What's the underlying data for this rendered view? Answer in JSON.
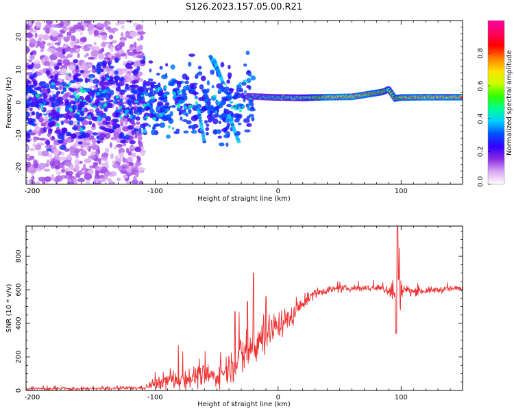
{
  "title": "S126.2023.157.05.00.R21",
  "chart_data": [
    {
      "type": "heatmap",
      "title": "S126.2023.157.05.00.R21",
      "xlabel": "Height of straight line (km)",
      "ylabel": "Frequency (Hz)",
      "xlim": [
        -205,
        150
      ],
      "ylim": [
        -25,
        25
      ],
      "xticks": [
        -200,
        -100,
        0,
        100
      ],
      "yticks": [
        -20,
        -10,
        0,
        10,
        20
      ],
      "colorbar": {
        "label": "Normalized spectral amplitude",
        "range": [
          0,
          1
        ],
        "ticks": [
          "0.0",
          "0.2",
          "0.4",
          "0.6",
          "0.8"
        ],
        "colors": [
          "#ffffff",
          "#d9a8f2",
          "#8a2be2",
          "#3300ff",
          "#0050ff",
          "#00d0ff",
          "#00ff90",
          "#30ff00",
          "#c8ff00",
          "#ffe000",
          "#ff8000",
          "#ff0000",
          "#ff0060",
          "#ff00a0"
        ]
      },
      "ridge": {
        "description_points_height_km": [
          -20,
          0,
          20,
          40,
          60,
          75,
          85,
          90,
          95,
          100,
          120,
          150
        ],
        "frequency_hz": [
          1.8,
          1.5,
          1.4,
          1.6,
          1.7,
          2.6,
          3.2,
          4.0,
          1.2,
          1.5,
          1.6,
          1.6
        ],
        "amplitude": [
          0.45,
          0.55,
          0.6,
          0.95,
          0.95,
          0.9,
          0.85,
          0.7,
          0.8,
          0.9,
          0.95,
          0.95
        ]
      }
    },
    {
      "type": "line",
      "xlabel": "Height of straight line (km)",
      "ylabel": "SNR (10 * v/v)",
      "xlim": [
        -205,
        150
      ],
      "ylim": [
        0,
        980
      ],
      "xticks": [
        -200,
        -100,
        0,
        100
      ],
      "yticks": [
        0,
        200,
        400,
        600,
        800
      ],
      "color": "#ee3333",
      "series": [
        {
          "name": "SNR",
          "x": [
            -205,
            -150,
            -110,
            -100,
            -90,
            -80,
            -70,
            -60,
            -50,
            -40,
            -30,
            -20,
            -10,
            0,
            10,
            20,
            30,
            40,
            60,
            80,
            90,
            95,
            98,
            100,
            110,
            130,
            150
          ],
          "y": [
            10,
            10,
            15,
            40,
            60,
            70,
            80,
            90,
            80,
            140,
            200,
            260,
            340,
            390,
            430,
            520,
            580,
            600,
            610,
            610,
            600,
            580,
            620,
            600,
            590,
            600,
            610
          ],
          "noise": [
            10,
            8,
            12,
            35,
            60,
            70,
            70,
            70,
            60,
            100,
            140,
            140,
            120,
            90,
            70,
            40,
            30,
            25,
            20,
            20,
            40,
            150,
            300,
            60,
            25,
            20,
            20
          ],
          "peaks": [
            [
              -35,
              470
            ],
            [
              -25,
              530
            ],
            [
              -20,
              700
            ],
            [
              -10,
              560
            ],
            [
              97,
              980
            ],
            [
              96,
              340
            ]
          ]
        }
      ]
    }
  ]
}
